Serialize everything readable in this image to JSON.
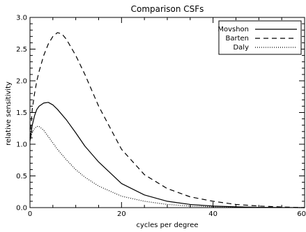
{
  "chart_data": {
    "type": "line",
    "title": "Comparison CSFs",
    "xlabel": "cycles per degree",
    "ylabel": "relative sensitivity",
    "xlim": [
      0,
      60
    ],
    "ylim": [
      0.0,
      3.0
    ],
    "xticks": [
      "0",
      "20",
      "40",
      "60"
    ],
    "yticks": [
      "0.0",
      "0.5",
      "1.0",
      "1.5",
      "2.0",
      "2.5",
      "3.0"
    ],
    "grid": false,
    "legend_position": "top-right",
    "series": [
      {
        "name": "Movshon",
        "style": "solid",
        "x": [
          0,
          0.5,
          1,
          1.5,
          2,
          3,
          4,
          5,
          6,
          8,
          10,
          12,
          15,
          20,
          25,
          30,
          35,
          40,
          45,
          50,
          55,
          60
        ],
        "y": [
          1.05,
          1.3,
          1.45,
          1.55,
          1.6,
          1.65,
          1.66,
          1.62,
          1.55,
          1.38,
          1.18,
          0.97,
          0.72,
          0.38,
          0.2,
          0.1,
          0.05,
          0.025,
          0.012,
          0.005,
          0.002,
          0.0
        ]
      },
      {
        "name": "Barten",
        "style": "dashed",
        "x": [
          0,
          0.5,
          1,
          1.5,
          2,
          3,
          4,
          5,
          6,
          7,
          8,
          10,
          12,
          15,
          20,
          25,
          30,
          35,
          40,
          45,
          50,
          55,
          60
        ],
        "y": [
          1.1,
          1.55,
          1.8,
          2.0,
          2.15,
          2.4,
          2.58,
          2.7,
          2.76,
          2.74,
          2.65,
          2.4,
          2.1,
          1.6,
          0.92,
          0.52,
          0.3,
          0.17,
          0.1,
          0.05,
          0.025,
          0.01,
          0.0
        ]
      },
      {
        "name": "Daly",
        "style": "dotted",
        "x": [
          0,
          0.5,
          1,
          1.5,
          2,
          3,
          4,
          6,
          8,
          10,
          12,
          15,
          20,
          25,
          30,
          35,
          40,
          45,
          50,
          55,
          60
        ],
        "y": [
          1.05,
          1.18,
          1.25,
          1.28,
          1.28,
          1.22,
          1.12,
          0.92,
          0.75,
          0.6,
          0.48,
          0.34,
          0.18,
          0.1,
          0.05,
          0.025,
          0.012,
          0.006,
          0.003,
          0.001,
          0.0
        ]
      }
    ]
  }
}
